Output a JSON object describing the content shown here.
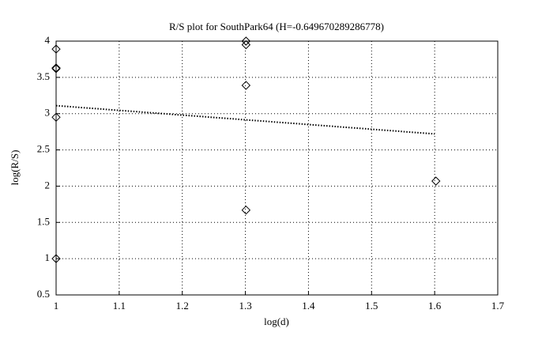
{
  "chart_data": {
    "type": "scatter",
    "title": "R/S plot for SouthPark64 (H=-0.649670289286778)",
    "xlabel": "log(d)",
    "ylabel": "log(R/S)",
    "xlim": [
      1,
      1.7
    ],
    "ylim": [
      0.5,
      4
    ],
    "xticks": [
      1,
      1.1,
      1.2,
      1.3,
      1.4,
      1.5,
      1.6,
      1.7
    ],
    "yticks": [
      0.5,
      1,
      1.5,
      2,
      2.5,
      3,
      3.5,
      4
    ],
    "grid": true,
    "series": [
      {
        "type": "scatter",
        "marker": "diamond",
        "color": "#000000",
        "x": [
          1,
          1,
          1,
          1,
          1,
          1.301,
          1.301,
          1.301,
          1.301,
          1.602
        ],
        "values": [
          3.89,
          3.63,
          3.62,
          2.95,
          1.0,
          4.0,
          3.95,
          3.39,
          1.67,
          2.07
        ]
      },
      {
        "type": "line",
        "style": "dotted",
        "color": "#000000",
        "x": [
          1,
          1.6
        ],
        "values": [
          3.11,
          2.72
        ]
      }
    ]
  }
}
